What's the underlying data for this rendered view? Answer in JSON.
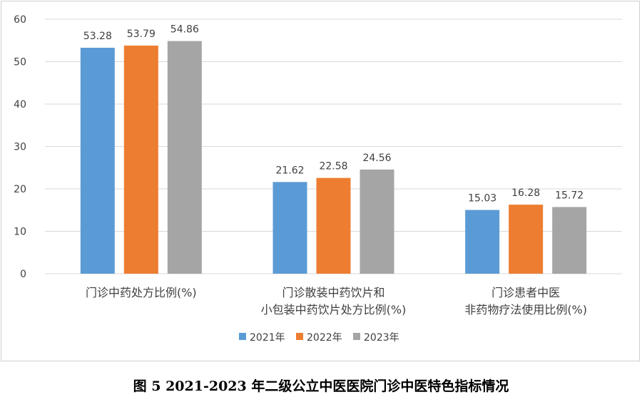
{
  "caption": "图 5 2021-2023 年二级公立中医医院门诊中医特色指标情况",
  "colors": {
    "2021年": "#5b9bd5",
    "2022年": "#ed7d31",
    "2023年": "#a5a5a5",
    "grid": "#d9d9d9",
    "text": "#404040"
  },
  "chart_data": {
    "type": "bar",
    "categories": [
      [
        "门诊中药处方比例(%)"
      ],
      [
        "门诊散装中药饮片和",
        "小包装中药饮片处方比例(%)"
      ],
      [
        "门诊患者中医",
        "非药物疗法使用比例(%)"
      ]
    ],
    "series": [
      {
        "name": "2021年",
        "values": [
          53.28,
          21.62,
          15.03
        ]
      },
      {
        "name": "2022年",
        "values": [
          53.79,
          22.58,
          16.28
        ]
      },
      {
        "name": "2023年",
        "values": [
          54.86,
          24.56,
          15.72
        ]
      }
    ],
    "ylim": [
      0,
      60
    ],
    "yticks": [
      0,
      10,
      20,
      30,
      40,
      50,
      60
    ],
    "grid": true,
    "legend_position": "bottom"
  }
}
